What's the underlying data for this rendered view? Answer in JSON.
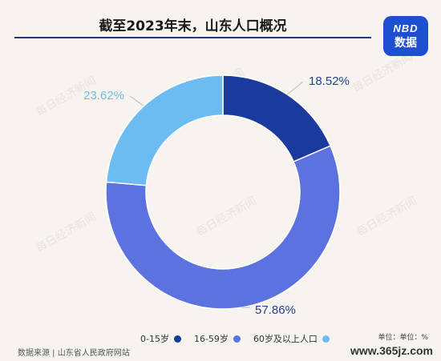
{
  "header": {
    "title": "截至2023年末，山东人口概况"
  },
  "logo": {
    "line1": "NBD",
    "line2": "数据"
  },
  "background_text": "每日经济新闻",
  "chart_data": {
    "type": "pie",
    "donut": true,
    "slices": [
      {
        "label": "0-15岁",
        "value": 18.52,
        "display": "18.52%",
        "color": "#1a3a9e"
      },
      {
        "label": "16-59岁",
        "value": 57.86,
        "display": "57.86%",
        "color": "#5b72e0"
      },
      {
        "label": "60岁及以上人口",
        "value": 23.62,
        "display": "23.62%",
        "color": "#6cbcf2"
      }
    ],
    "label_color": "#1f3f9a",
    "legend_placement": "bottom"
  },
  "footer": {
    "unit": "单位：单位：%",
    "source": "数据来源 | 山东省人民政府网站",
    "watermark": "www.365jz.com"
  }
}
